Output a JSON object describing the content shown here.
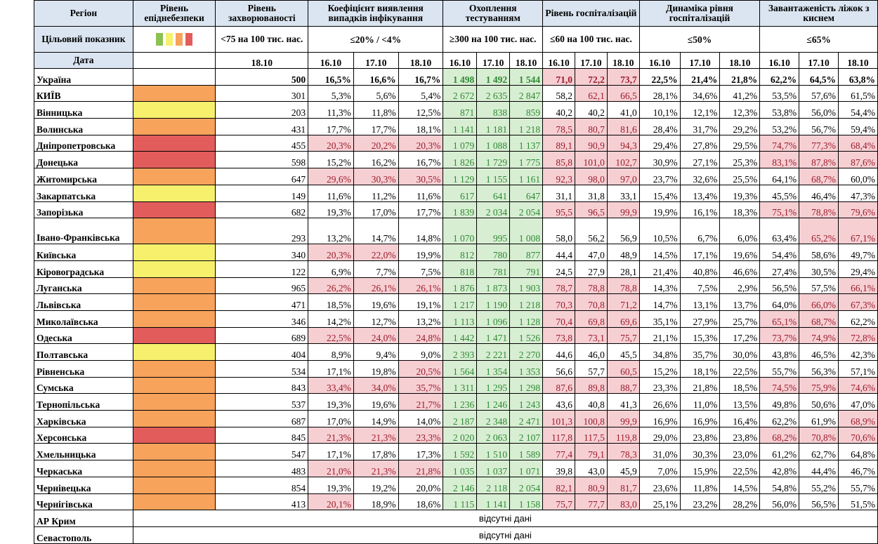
{
  "headers": {
    "region": "Регіон",
    "level": "Рівень епіднебезпеки",
    "incidence": "Рівень захворюваності",
    "detection": "Коефіцієнт виявлення випадків інфікування",
    "testing": "Охоплення тестуванням",
    "hosp": "Рівень госпіталізацій",
    "dyn": "Динаміка рівня госпіталізацій",
    "oxygen": "Завантаженість ліжок з киснем"
  },
  "targets": {
    "label": "Цільовий показник",
    "incidence": "<75 на 100 тис. нас.",
    "detection": "≤20% / <4%",
    "testing": "≥300 на 100 тис. нас.",
    "hosp": "≤60 на 100 тис. нас.",
    "dyn": "≤50%",
    "oxygen": "≤65%"
  },
  "level_colors": {
    "green": "#8cc152",
    "yellow": "#f6f06d",
    "orange": "#f7a35c",
    "red": "#e25c5c"
  },
  "dates": {
    "label": "Дата",
    "incidence": "18.10",
    "d1": "16.10",
    "d2": "17.10",
    "d3": "18.10"
  },
  "rows": [
    {
      "name": "Україна",
      "level": "",
      "inc": "500",
      "det": [
        "16,5%",
        "16,6%",
        "16,7%"
      ],
      "test": [
        "1 498",
        "1 492",
        "1 544"
      ],
      "hosp": [
        "71,0",
        "72,2",
        "73,7"
      ],
      "dyn": [
        "22,5%",
        "21,4%",
        "21,8%"
      ],
      "oxy": [
        "62,2%",
        "64,5%",
        "63,8%"
      ]
    },
    {
      "name": "КИЇВ",
      "level": "orange",
      "inc": "301",
      "det": [
        "5,3%",
        "5,6%",
        "5,4%"
      ],
      "test": [
        "2 672",
        "2 635",
        "2 847"
      ],
      "hosp": [
        "58,2",
        "62,1",
        "66,5"
      ],
      "dyn": [
        "28,1%",
        "34,6%",
        "41,2%"
      ],
      "oxy": [
        "53,5%",
        "57,6%",
        "61,5%"
      ]
    },
    {
      "name": "Вінницька",
      "level": "yellow",
      "inc": "203",
      "det": [
        "11,3%",
        "11,8%",
        "12,5%"
      ],
      "test": [
        "871",
        "838",
        "859"
      ],
      "hosp": [
        "40,2",
        "40,2",
        "41,0"
      ],
      "dyn": [
        "10,1%",
        "12,1%",
        "12,3%"
      ],
      "oxy": [
        "53,8%",
        "56,0%",
        "54,4%"
      ]
    },
    {
      "name": "Волинська",
      "level": "orange",
      "inc": "431",
      "det": [
        "17,7%",
        "17,7%",
        "18,1%"
      ],
      "test": [
        "1 141",
        "1 181",
        "1 218"
      ],
      "hosp": [
        "78,5",
        "80,7",
        "81,6"
      ],
      "dyn": [
        "28,4%",
        "31,7%",
        "29,2%"
      ],
      "oxy": [
        "53,2%",
        "56,7%",
        "59,4%"
      ]
    },
    {
      "name": "Дніпропетровська",
      "level": "red",
      "inc": "455",
      "det": [
        "20,3%",
        "20,2%",
        "20,3%"
      ],
      "test": [
        "1 079",
        "1 088",
        "1 137"
      ],
      "hosp": [
        "89,1",
        "90,9",
        "94,3"
      ],
      "dyn": [
        "29,4%",
        "27,8%",
        "29,5%"
      ],
      "oxy": [
        "74,7%",
        "77,3%",
        "68,4%"
      ]
    },
    {
      "name": "Донецька",
      "level": "red",
      "inc": "598",
      "det": [
        "15,2%",
        "16,2%",
        "16,7%"
      ],
      "test": [
        "1 826",
        "1 729",
        "1 775"
      ],
      "hosp": [
        "85,8",
        "101,0",
        "102,7"
      ],
      "dyn": [
        "30,9%",
        "27,1%",
        "25,3%"
      ],
      "oxy": [
        "83,1%",
        "87,8%",
        "87,6%"
      ]
    },
    {
      "name": "Житомирська",
      "level": "orange",
      "inc": "647",
      "det": [
        "29,6%",
        "30,3%",
        "30,5%"
      ],
      "test": [
        "1 129",
        "1 155",
        "1 161"
      ],
      "hosp": [
        "92,3",
        "98,0",
        "97,0"
      ],
      "dyn": [
        "23,7%",
        "32,6%",
        "25,5%"
      ],
      "oxy": [
        "64,1%",
        "68,7%",
        "60,0%"
      ]
    },
    {
      "name": "Закарпатська",
      "level": "yellow",
      "inc": "149",
      "det": [
        "11,6%",
        "11,2%",
        "11,6%"
      ],
      "test": [
        "617",
        "641",
        "647"
      ],
      "hosp": [
        "31,1",
        "31,8",
        "33,1"
      ],
      "dyn": [
        "15,4%",
        "13,4%",
        "19,3%"
      ],
      "oxy": [
        "45,5%",
        "46,4%",
        "47,3%"
      ]
    },
    {
      "name": "Запорізька",
      "level": "red",
      "inc": "682",
      "det": [
        "19,3%",
        "17,0%",
        "17,7%"
      ],
      "test": [
        "1 839",
        "2 034",
        "2 054"
      ],
      "hosp": [
        "95,5",
        "96,5",
        "99,9"
      ],
      "dyn": [
        "19,9%",
        "16,1%",
        "18,3%"
      ],
      "oxy": [
        "75,1%",
        "78,8%",
        "79,6%"
      ]
    },
    {
      "name": "Івано-Франківська",
      "level": "orange",
      "inc": "293",
      "det": [
        "13,2%",
        "14,7%",
        "14,8%"
      ],
      "test": [
        "1 070",
        "995",
        "1 008"
      ],
      "hosp": [
        "58,0",
        "56,2",
        "56,9"
      ],
      "dyn": [
        "10,5%",
        "6,7%",
        "6,0%"
      ],
      "oxy": [
        "63,4%",
        "65,2%",
        "67,1%"
      ]
    },
    {
      "name": "Київська",
      "level": "yellow",
      "inc": "340",
      "det": [
        "20,3%",
        "22,0%",
        "19,9%"
      ],
      "test": [
        "812",
        "780",
        "877"
      ],
      "hosp": [
        "44,4",
        "47,0",
        "48,9"
      ],
      "dyn": [
        "14,5%",
        "17,1%",
        "19,6%"
      ],
      "oxy": [
        "54,4%",
        "58,6%",
        "49,7%"
      ]
    },
    {
      "name": "Кіровоградська",
      "level": "yellow",
      "inc": "122",
      "det": [
        "6,9%",
        "7,7%",
        "7,5%"
      ],
      "test": [
        "818",
        "781",
        "791"
      ],
      "hosp": [
        "24,5",
        "27,9",
        "28,1"
      ],
      "dyn": [
        "21,4%",
        "40,8%",
        "46,6%"
      ],
      "oxy": [
        "27,4%",
        "30,5%",
        "29,4%"
      ]
    },
    {
      "name": "Луганська",
      "level": "orange",
      "inc": "965",
      "det": [
        "26,2%",
        "26,1%",
        "26,1%"
      ],
      "test": [
        "1 876",
        "1 873",
        "1 903"
      ],
      "hosp": [
        "78,7",
        "78,8",
        "78,8"
      ],
      "dyn": [
        "14,3%",
        "7,5%",
        "2,9%"
      ],
      "oxy": [
        "56,5%",
        "57,5%",
        "66,1%"
      ]
    },
    {
      "name": "Львівська",
      "level": "orange",
      "inc": "471",
      "det": [
        "18,5%",
        "19,6%",
        "19,1%"
      ],
      "test": [
        "1 217",
        "1 190",
        "1 218"
      ],
      "hosp": [
        "70,3",
        "70,8",
        "71,2"
      ],
      "dyn": [
        "14,7%",
        "13,1%",
        "13,7%"
      ],
      "oxy": [
        "64,0%",
        "66,0%",
        "67,3%"
      ]
    },
    {
      "name": "Миколаївська",
      "level": "orange",
      "inc": "346",
      "det": [
        "14,2%",
        "12,7%",
        "13,2%"
      ],
      "test": [
        "1 113",
        "1 096",
        "1 128"
      ],
      "hosp": [
        "70,4",
        "69,8",
        "69,6"
      ],
      "dyn": [
        "35,1%",
        "27,9%",
        "25,7%"
      ],
      "oxy": [
        "65,1%",
        "68,7%",
        "62,2%"
      ]
    },
    {
      "name": "Одеська",
      "level": "red",
      "inc": "689",
      "det": [
        "22,5%",
        "24,0%",
        "24,8%"
      ],
      "test": [
        "1 442",
        "1 471",
        "1 526"
      ],
      "hosp": [
        "73,8",
        "73,1",
        "75,7"
      ],
      "dyn": [
        "21,1%",
        "15,3%",
        "17,2%"
      ],
      "oxy": [
        "73,7%",
        "74,9%",
        "72,8%"
      ]
    },
    {
      "name": "Полтавська",
      "level": "yellow",
      "inc": "404",
      "det": [
        "8,9%",
        "9,4%",
        "9,0%"
      ],
      "test": [
        "2 393",
        "2 221",
        "2 270"
      ],
      "hosp": [
        "44,6",
        "46,0",
        "45,5"
      ],
      "dyn": [
        "34,8%",
        "35,7%",
        "30,0%"
      ],
      "oxy": [
        "43,8%",
        "46,5%",
        "42,3%"
      ]
    },
    {
      "name": "Рівненська",
      "level": "orange",
      "inc": "534",
      "det": [
        "17,1%",
        "19,8%",
        "20,5%"
      ],
      "test": [
        "1 564",
        "1 354",
        "1 353"
      ],
      "hosp": [
        "56,6",
        "57,7",
        "60,5"
      ],
      "dyn": [
        "15,2%",
        "18,1%",
        "22,5%"
      ],
      "oxy": [
        "55,7%",
        "56,3%",
        "57,1%"
      ]
    },
    {
      "name": "Сумська",
      "level": "orange",
      "inc": "843",
      "det": [
        "33,4%",
        "34,0%",
        "35,7%"
      ],
      "test": [
        "1 311",
        "1 295",
        "1 298"
      ],
      "hosp": [
        "87,6",
        "89,8",
        "88,7"
      ],
      "dyn": [
        "23,3%",
        "21,8%",
        "18,5%"
      ],
      "oxy": [
        "74,5%",
        "75,9%",
        "74,6%"
      ]
    },
    {
      "name": "Тернопільська",
      "level": "orange",
      "inc": "537",
      "det": [
        "19,3%",
        "19,6%",
        "21,7%"
      ],
      "test": [
        "1 236",
        "1 246",
        "1 243"
      ],
      "hosp": [
        "43,6",
        "40,8",
        "41,3"
      ],
      "dyn": [
        "26,6%",
        "11,0%",
        "13,5%"
      ],
      "oxy": [
        "49,8%",
        "50,6%",
        "47,0%"
      ]
    },
    {
      "name": "Харківська",
      "level": "orange",
      "inc": "687",
      "det": [
        "17,0%",
        "14,9%",
        "14,0%"
      ],
      "test": [
        "2 187",
        "2 348",
        "2 471"
      ],
      "hosp": [
        "101,3",
        "100,8",
        "99,9"
      ],
      "dyn": [
        "16,9%",
        "16,9%",
        "16,4%"
      ],
      "oxy": [
        "62,2%",
        "61,9%",
        "68,9%"
      ]
    },
    {
      "name": "Херсонська",
      "level": "red",
      "inc": "845",
      "det": [
        "21,3%",
        "21,3%",
        "23,3%"
      ],
      "test": [
        "2 020",
        "2 063",
        "2 107"
      ],
      "hosp": [
        "117,8",
        "117,5",
        "119,8"
      ],
      "dyn": [
        "29,0%",
        "23,8%",
        "23,8%"
      ],
      "oxy": [
        "68,2%",
        "70,8%",
        "70,6%"
      ]
    },
    {
      "name": "Хмельницька",
      "level": "orange",
      "inc": "547",
      "det": [
        "17,1%",
        "17,8%",
        "17,3%"
      ],
      "test": [
        "1 592",
        "1 510",
        "1 589"
      ],
      "hosp": [
        "77,4",
        "79,1",
        "78,3"
      ],
      "dyn": [
        "31,0%",
        "30,3%",
        "23,0%"
      ],
      "oxy": [
        "61,2%",
        "62,7%",
        "64,8%"
      ]
    },
    {
      "name": "Черкаська",
      "level": "orange",
      "inc": "483",
      "det": [
        "21,0%",
        "21,3%",
        "21,8%"
      ],
      "test": [
        "1 035",
        "1 037",
        "1 071"
      ],
      "hosp": [
        "39,8",
        "43,0",
        "45,9"
      ],
      "dyn": [
        "7,0%",
        "15,9%",
        "22,5%"
      ],
      "oxy": [
        "42,8%",
        "44,4%",
        "46,7%"
      ]
    },
    {
      "name": "Чернівецька",
      "level": "orange",
      "inc": "854",
      "det": [
        "19,3%",
        "19,2%",
        "20,0%"
      ],
      "test": [
        "2 146",
        "2 118",
        "2 054"
      ],
      "hosp": [
        "82,1",
        "80,9",
        "81,7"
      ],
      "dyn": [
        "23,6%",
        "11,8%",
        "14,5%"
      ],
      "oxy": [
        "54,8%",
        "55,2%",
        "55,7%"
      ]
    },
    {
      "name": "Чернігівська",
      "level": "orange",
      "inc": "413",
      "det": [
        "20,1%",
        "18,9%",
        "18,6%"
      ],
      "test": [
        "1 115",
        "1 141",
        "1 158"
      ],
      "hosp": [
        "75,7",
        "77,7",
        "83,0"
      ],
      "dyn": [
        "25,1%",
        "23,2%",
        "28,2%"
      ],
      "oxy": [
        "56,0%",
        "56,5%",
        "51,5%"
      ]
    }
  ],
  "missing": [
    {
      "name": "АР Крим",
      "text": "відсутні дані"
    },
    {
      "name": "Севастополь",
      "text": "відсутні дані"
    }
  ]
}
